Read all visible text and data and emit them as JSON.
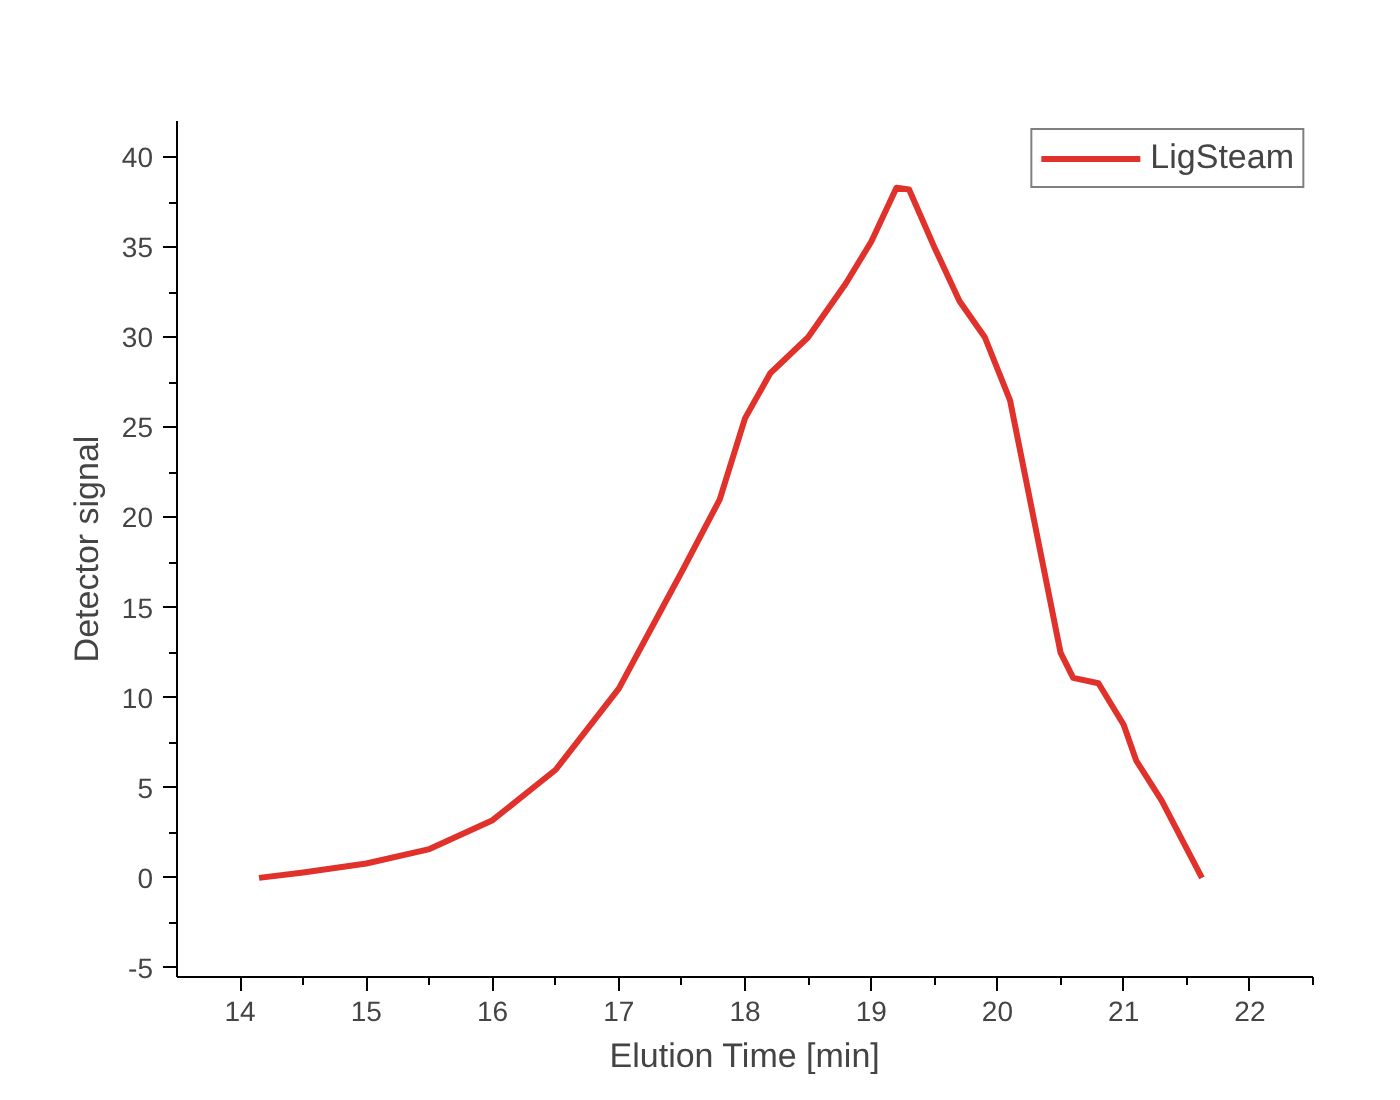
{
  "chart_data": {
    "type": "line",
    "xlabel": "Elution Time [min]",
    "ylabel": "Detector signal",
    "x": [
      14.15,
      14.5,
      15,
      15.5,
      16,
      16.5,
      17,
      17.5,
      17.8,
      18,
      18.2,
      18.5,
      18.8,
      19,
      19.2,
      19.3,
      19.5,
      19.7,
      19.9,
      20.1,
      20.3,
      20.5,
      20.6,
      20.8,
      21,
      21.1,
      21.3,
      21.62
    ],
    "series": [
      {
        "name": "LigSteam",
        "color": "#e0312b",
        "values": [
          0,
          0.3,
          0.8,
          1.6,
          3.2,
          6,
          10.5,
          17,
          21,
          25.5,
          28,
          30,
          33,
          35.3,
          38.3,
          38.2,
          35,
          32,
          30,
          26.5,
          19.5,
          12.5,
          11.1,
          10.8,
          8.5,
          6.5,
          4.3,
          0
        ]
      }
    ],
    "xlim": [
      13.5,
      22.5
    ],
    "ylim": [
      -5.5,
      42
    ],
    "xticks": [
      14,
      15,
      16,
      17,
      18,
      19,
      20,
      21,
      22
    ],
    "yticks": [
      -5,
      0,
      5,
      10,
      15,
      20,
      25,
      30,
      35,
      40
    ],
    "grid": false,
    "legend": "top right",
    "marker": "none",
    "line_style": "solid"
  }
}
